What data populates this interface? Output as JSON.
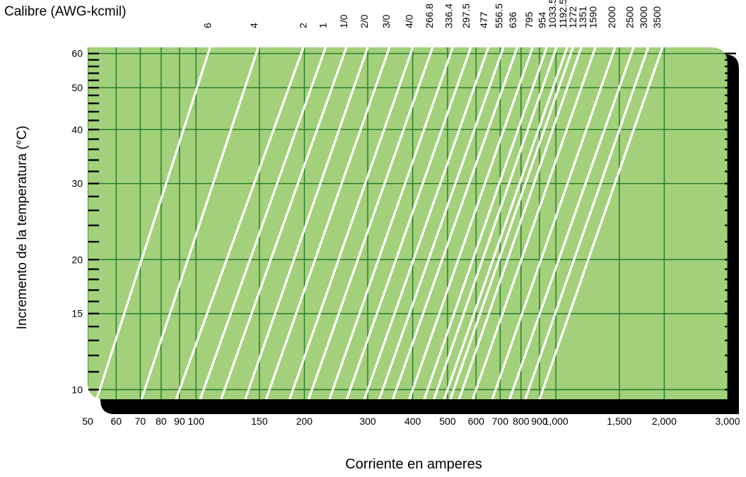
{
  "chart_data": {
    "type": "line",
    "title": "",
    "caliber_axis_title": "Calibre (AWG-kcmil)",
    "xlabel": "Corriente en amperes",
    "ylabel": "Incremento de la temperatura (°C)",
    "x_scale": "log",
    "y_scale": "log",
    "xlim": [
      50,
      3000
    ],
    "ylim": [
      9.5,
      62
    ],
    "x_tick_values": [
      50,
      60,
      70,
      80,
      90,
      100,
      150,
      200,
      300,
      400,
      500,
      600,
      700,
      800,
      900,
      1000,
      1500,
      2000,
      3000
    ],
    "x_tick_labels": [
      "50",
      "60",
      "70",
      "80",
      "90",
      "100",
      "150",
      "200",
      "300",
      "400",
      "500",
      "600",
      "700",
      "800",
      "900",
      "1,000",
      "1,500",
      "2,000",
      "3,000"
    ],
    "y_tick_values": [
      10,
      15,
      20,
      30,
      40,
      50,
      60
    ],
    "y_tick_labels": [
      "10",
      "15",
      "20",
      "30",
      "40",
      "50",
      "60"
    ],
    "grid": true,
    "colors": {
      "plot_background": "#a3d07b",
      "grid": "#1e7a28",
      "curves": "#ffffff",
      "frame_shadow": "#000000"
    },
    "series": [
      {
        "name": "6",
        "points": [
          [
            54,
            10
          ],
          [
            108,
            60
          ]
        ]
      },
      {
        "name": "4",
        "points": [
          [
            72,
            10
          ],
          [
            147,
            60
          ]
        ]
      },
      {
        "name": "2",
        "points": [
          [
            90,
            10
          ],
          [
            196,
            60
          ]
        ]
      },
      {
        "name": "1",
        "points": [
          [
            105,
            10
          ],
          [
            226,
            60
          ]
        ]
      },
      {
        "name": "1/0",
        "points": [
          [
            120,
            10
          ],
          [
            258,
            60
          ]
        ]
      },
      {
        "name": "2/0",
        "points": [
          [
            140,
            10
          ],
          [
            296,
            60
          ]
        ]
      },
      {
        "name": "3/0",
        "points": [
          [
            160,
            10
          ],
          [
            340,
            60
          ]
        ]
      },
      {
        "name": "4/0",
        "points": [
          [
            186,
            10
          ],
          [
            395,
            60
          ]
        ]
      },
      {
        "name": "266.8",
        "points": [
          [
            210,
            10
          ],
          [
            448,
            60
          ]
        ]
      },
      {
        "name": "336.4",
        "points": [
          [
            240,
            10
          ],
          [
            510,
            60
          ]
        ]
      },
      {
        "name": "297.5",
        "points": [
          [
            268,
            10
          ],
          [
            572,
            60
          ]
        ]
      },
      {
        "name": "477",
        "points": [
          [
            300,
            10
          ],
          [
            640,
            60
          ]
        ]
      },
      {
        "name": "556.5",
        "points": [
          [
            330,
            10
          ],
          [
            705,
            60
          ]
        ]
      },
      {
        "name": "636",
        "points": [
          [
            360,
            10
          ],
          [
            770,
            60
          ]
        ]
      },
      {
        "name": "795",
        "points": [
          [
            400,
            10
          ],
          [
            850,
            60
          ]
        ]
      },
      {
        "name": "954",
        "points": [
          [
            440,
            10
          ],
          [
            930,
            60
          ]
        ]
      },
      {
        "name": "1033.5",
        "points": [
          [
            468,
            10
          ],
          [
            990,
            60
          ]
        ]
      },
      {
        "name": "1192.5",
        "points": [
          [
            500,
            10
          ],
          [
            1060,
            60
          ]
        ]
      },
      {
        "name": "1272",
        "points": [
          [
            520,
            10
          ],
          [
            1100,
            60
          ]
        ]
      },
      {
        "name": "1351",
        "points": [
          [
            550,
            10
          ],
          [
            1160,
            60
          ]
        ]
      },
      {
        "name": "1590",
        "points": [
          [
            600,
            10
          ],
          [
            1270,
            60
          ]
        ]
      },
      {
        "name": "2000",
        "points": [
          [
            680,
            10
          ],
          [
            1440,
            60
          ]
        ]
      },
      {
        "name": "2500",
        "points": [
          [
            760,
            10
          ],
          [
            1620,
            60
          ]
        ]
      },
      {
        "name": "3000",
        "points": [
          [
            840,
            10
          ],
          [
            1780,
            60
          ]
        ]
      },
      {
        "name": "3500",
        "points": [
          [
            920,
            10
          ],
          [
            1950,
            60
          ]
        ]
      }
    ],
    "top_labels": [
      {
        "text": "6",
        "x": 110
      },
      {
        "text": "4",
        "x": 148
      },
      {
        "text": "2",
        "x": 203
      },
      {
        "text": "1",
        "x": 230
      },
      {
        "text": "1/0",
        "x": 263
      },
      {
        "text": "2/0",
        "x": 300
      },
      {
        "text": "3/0",
        "x": 345
      },
      {
        "text": "4/0",
        "x": 400
      },
      {
        "text": "266.8",
        "x": 455
      },
      {
        "text": "336.4",
        "x": 515
      },
      {
        "text": "297.5",
        "x": 575
      },
      {
        "text": "477",
        "x": 645
      },
      {
        "text": "556.5",
        "x": 710
      },
      {
        "text": "636",
        "x": 775
      },
      {
        "text": "795",
        "x": 860
      },
      {
        "text": "954",
        "x": 935
      },
      {
        "text": "1033.5",
        "x": 1000
      },
      {
        "text": "1192.5",
        "x": 1070
      },
      {
        "text": "1272",
        "x": 1140
      },
      {
        "text": "1351",
        "x": 1215
      },
      {
        "text": "1590",
        "x": 1295
      },
      {
        "text": "2000",
        "x": 1460
      },
      {
        "text": "2500",
        "x": 1640
      },
      {
        "text": "3000",
        "x": 1790
      },
      {
        "text": "3500",
        "x": 1950
      }
    ]
  }
}
